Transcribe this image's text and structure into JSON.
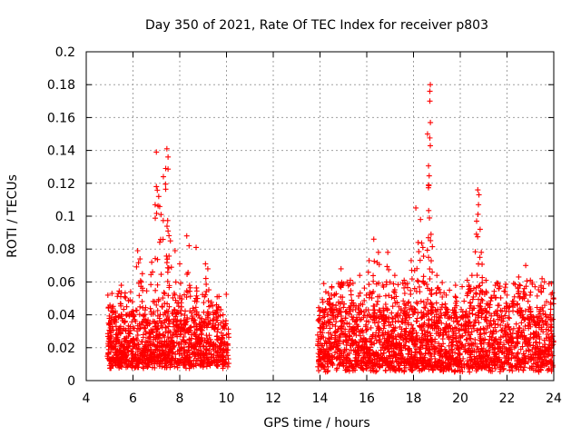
{
  "chart_data": {
    "type": "scatter",
    "title": "Day 350 of 2021, Rate Of TEC Index for receiver p803",
    "xlabel": "GPS time / hours",
    "ylabel": "ROTI / TECUs",
    "xlim": [
      4,
      24
    ],
    "ylim": [
      0,
      0.2
    ],
    "xticks": [
      4,
      6,
      8,
      10,
      12,
      14,
      16,
      18,
      20,
      22,
      24
    ],
    "yticks": [
      0,
      0.02,
      0.04,
      0.06,
      0.08,
      0.1,
      0.12,
      0.14,
      0.16,
      0.18,
      0.2
    ],
    "xtick_labels": [
      "4",
      "6",
      "8",
      "10",
      "12",
      "14",
      "16",
      "18",
      "20",
      "22",
      "24"
    ],
    "ytick_labels": [
      "0",
      "0.02",
      "0.04",
      "0.06",
      "0.08",
      "0.1",
      "0.12",
      "0.14",
      "0.16",
      "0.18",
      "0.2"
    ],
    "grid": true,
    "marker": "+",
    "series": [
      {
        "name": "ROTI",
        "color": "#ff0000",
        "segments": [
          {
            "x_start": 4.9,
            "x_end": 10.1,
            "typical_range": [
              0.01,
              0.04
            ]
          },
          {
            "x_start": 13.9,
            "x_end": 24.0,
            "typical_range": [
              0.008,
              0.045
            ]
          }
        ],
        "peaks": [
          {
            "x": 5.1,
            "y": 0.053
          },
          {
            "x": 5.5,
            "y": 0.058
          },
          {
            "x": 5.9,
            "y": 0.054
          },
          {
            "x": 6.2,
            "y": 0.079
          },
          {
            "x": 6.3,
            "y": 0.074
          },
          {
            "x": 6.4,
            "y": 0.065
          },
          {
            "x": 6.8,
            "y": 0.072
          },
          {
            "x": 7.0,
            "y": 0.118
          },
          {
            "x": 7.0,
            "y": 0.139
          },
          {
            "x": 7.1,
            "y": 0.112
          },
          {
            "x": 7.2,
            "y": 0.101
          },
          {
            "x": 7.3,
            "y": 0.124
          },
          {
            "x": 7.4,
            "y": 0.129
          },
          {
            "x": 7.45,
            "y": 0.141
          },
          {
            "x": 7.5,
            "y": 0.136
          },
          {
            "x": 7.5,
            "y": 0.091
          },
          {
            "x": 7.6,
            "y": 0.085
          },
          {
            "x": 7.8,
            "y": 0.079
          },
          {
            "x": 8.0,
            "y": 0.071
          },
          {
            "x": 8.3,
            "y": 0.088
          },
          {
            "x": 8.4,
            "y": 0.082
          },
          {
            "x": 8.7,
            "y": 0.081
          },
          {
            "x": 9.1,
            "y": 0.071
          },
          {
            "x": 9.2,
            "y": 0.068
          },
          {
            "x": 9.6,
            "y": 0.051
          },
          {
            "x": 14.5,
            "y": 0.052
          },
          {
            "x": 14.9,
            "y": 0.068
          },
          {
            "x": 15.3,
            "y": 0.061
          },
          {
            "x": 15.7,
            "y": 0.064
          },
          {
            "x": 16.1,
            "y": 0.073
          },
          {
            "x": 16.3,
            "y": 0.086
          },
          {
            "x": 16.5,
            "y": 0.078
          },
          {
            "x": 16.9,
            "y": 0.078
          },
          {
            "x": 17.2,
            "y": 0.064
          },
          {
            "x": 17.6,
            "y": 0.061
          },
          {
            "x": 17.9,
            "y": 0.073
          },
          {
            "x": 18.1,
            "y": 0.105
          },
          {
            "x": 18.2,
            "y": 0.084
          },
          {
            "x": 18.3,
            "y": 0.098
          },
          {
            "x": 18.4,
            "y": 0.081
          },
          {
            "x": 18.6,
            "y": 0.15
          },
          {
            "x": 18.65,
            "y": 0.119
          },
          {
            "x": 18.7,
            "y": 0.17
          },
          {
            "x": 18.7,
            "y": 0.176
          },
          {
            "x": 18.72,
            "y": 0.18
          },
          {
            "x": 18.75,
            "y": 0.089
          },
          {
            "x": 18.8,
            "y": 0.066
          },
          {
            "x": 19.0,
            "y": 0.064
          },
          {
            "x": 19.4,
            "y": 0.052
          },
          {
            "x": 19.8,
            "y": 0.058
          },
          {
            "x": 20.3,
            "y": 0.061
          },
          {
            "x": 20.5,
            "y": 0.064
          },
          {
            "x": 20.7,
            "y": 0.097
          },
          {
            "x": 20.75,
            "y": 0.116
          },
          {
            "x": 20.8,
            "y": 0.113
          },
          {
            "x": 20.85,
            "y": 0.092
          },
          {
            "x": 20.9,
            "y": 0.078
          },
          {
            "x": 21.1,
            "y": 0.061
          },
          {
            "x": 21.5,
            "y": 0.058
          },
          {
            "x": 22.0,
            "y": 0.052
          },
          {
            "x": 22.5,
            "y": 0.063
          },
          {
            "x": 22.8,
            "y": 0.07
          },
          {
            "x": 23.0,
            "y": 0.061
          },
          {
            "x": 23.5,
            "y": 0.062
          },
          {
            "x": 23.9,
            "y": 0.059
          }
        ]
      }
    ]
  }
}
